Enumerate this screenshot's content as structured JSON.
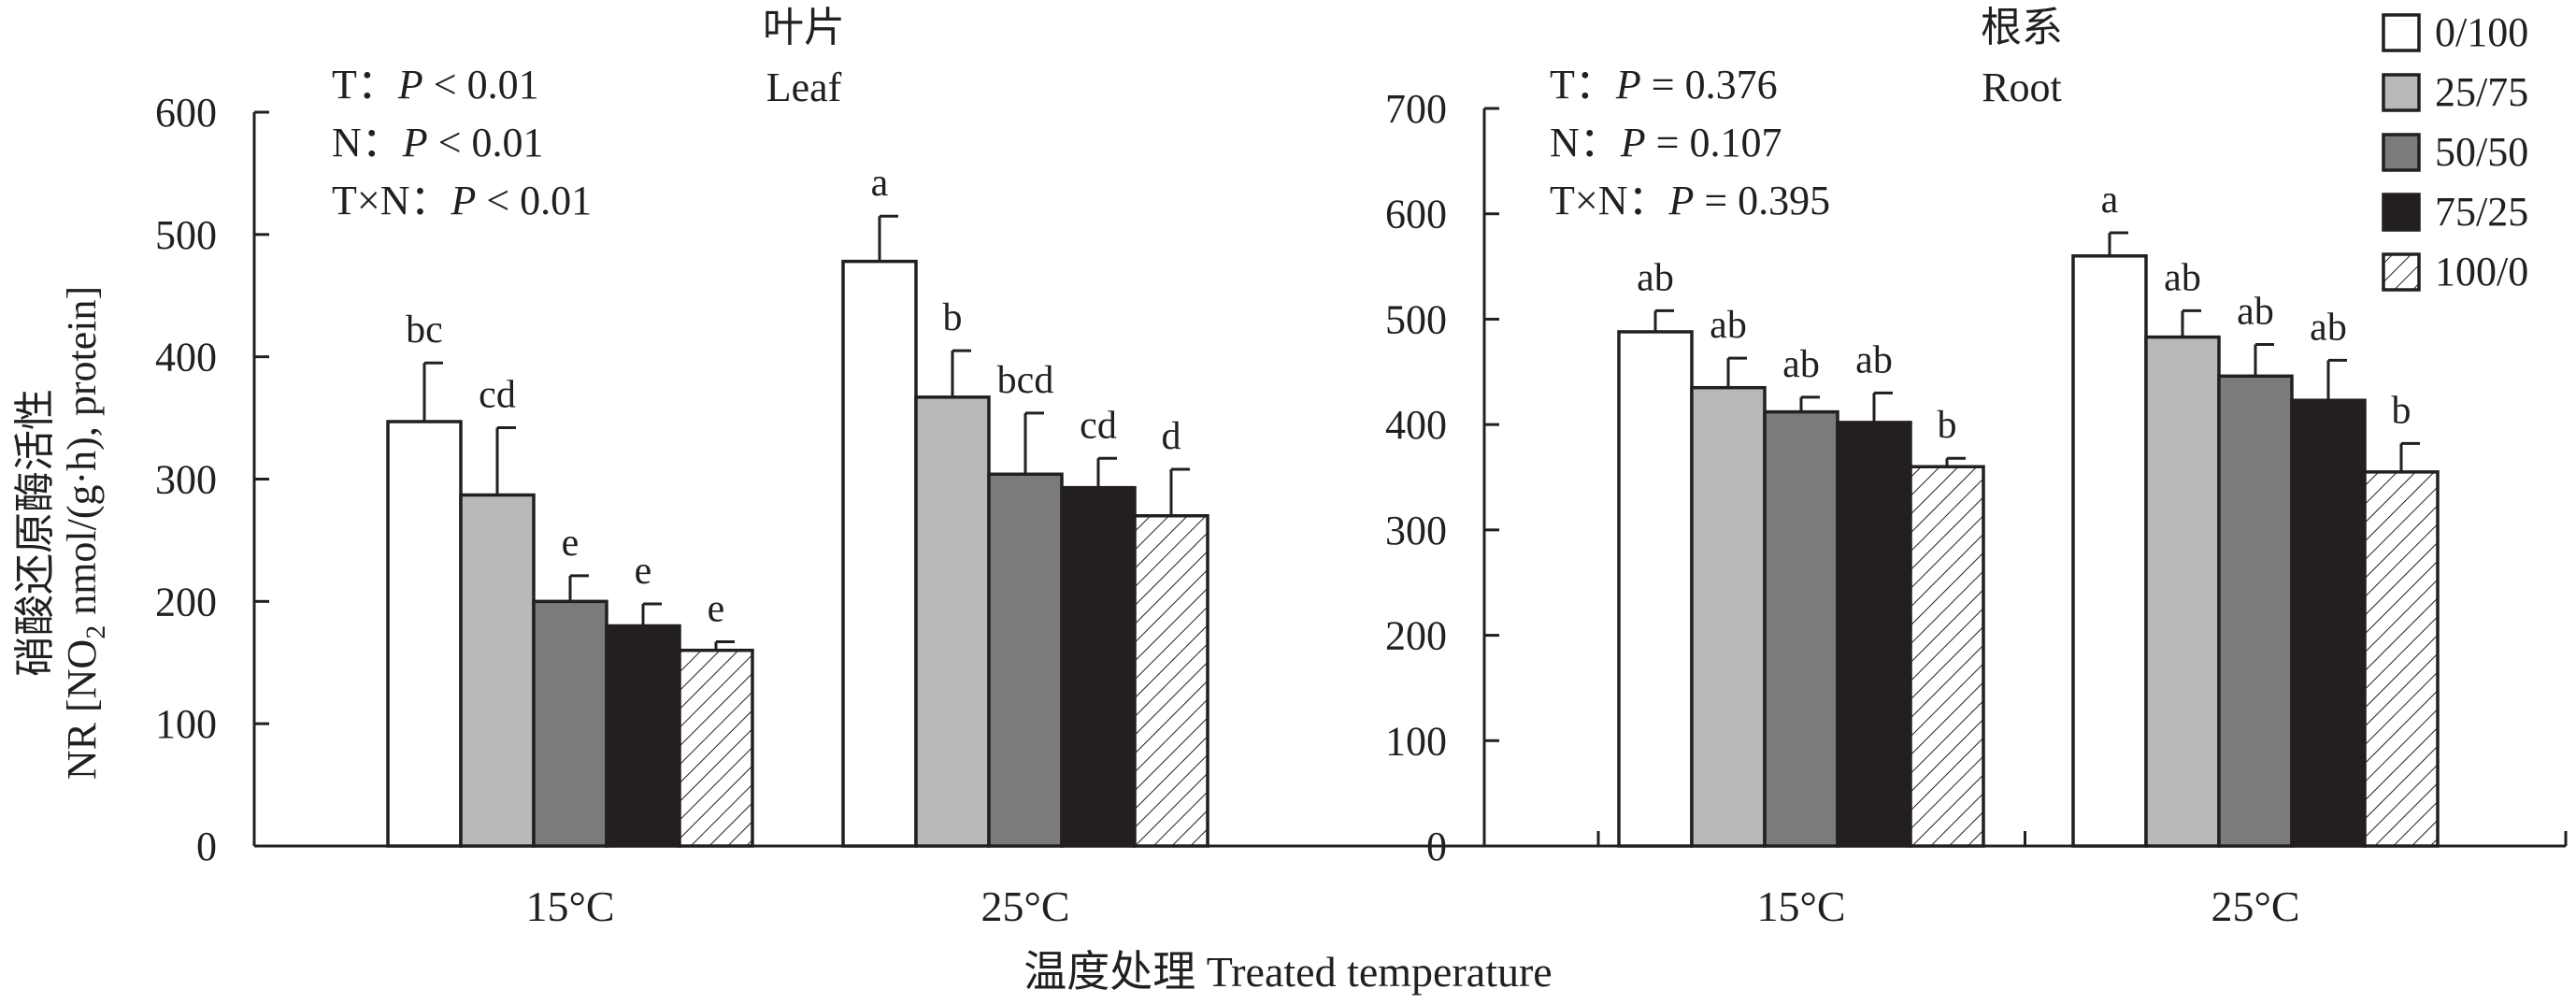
{
  "figure": {
    "x_axis_label": "温度处理 Treated temperature",
    "y_axis_label_cn": "硝酸还原酶活性",
    "y_axis_label_en_pre": "NR [NO",
    "y_axis_label_en_sub": "2",
    "y_axis_label_en_post": " nmol/(g·h), protein]"
  },
  "legend": [
    {
      "label": "0/100",
      "fill": "white"
    },
    {
      "label": "25/75",
      "fill": "light"
    },
    {
      "label": "50/50",
      "fill": "mid"
    },
    {
      "label": "75/25",
      "fill": "dark"
    },
    {
      "label": "100/0",
      "fill": "hatch"
    }
  ],
  "colors": {
    "white": "#ffffff",
    "light": "#b9b9b9",
    "mid": "#7b7b7b",
    "dark": "#231f20",
    "line": "#231f20"
  },
  "chart_data": [
    {
      "type": "bar",
      "title_cn": "叶片",
      "title_en": "Leaf",
      "stats": [
        {
          "factor": "T：",
          "p": "P",
          "rest": " < 0.01"
        },
        {
          "factor": "N：",
          "p": "P",
          "rest": " < 0.01"
        },
        {
          "factor": "T×N：",
          "p": "P",
          "rest": " < 0.01"
        }
      ],
      "categories": [
        "15°C",
        "25°C"
      ],
      "ylim": [
        0,
        600
      ],
      "yticks": [
        0,
        100,
        200,
        300,
        400,
        500,
        600
      ],
      "series": [
        {
          "name": "0/100",
          "values": [
            347,
            478
          ],
          "errors": [
            48,
            37
          ],
          "letters": [
            "bc",
            "a"
          ]
        },
        {
          "name": "25/75",
          "values": [
            287,
            367
          ],
          "errors": [
            55,
            38
          ],
          "letters": [
            "cd",
            "b"
          ]
        },
        {
          "name": "50/50",
          "values": [
            200,
            304
          ],
          "errors": [
            21,
            50
          ],
          "letters": [
            "e",
            "bcd"
          ]
        },
        {
          "name": "75/25",
          "values": [
            180,
            293
          ],
          "errors": [
            18,
            24
          ],
          "letters": [
            "e",
            "cd"
          ]
        },
        {
          "name": "100/0",
          "values": [
            160,
            270
          ],
          "errors": [
            7,
            38
          ],
          "letters": [
            "e",
            "d"
          ]
        }
      ]
    },
    {
      "type": "bar",
      "title_cn": "根系",
      "title_en": "Root",
      "stats": [
        {
          "factor": "T：",
          "p": "P",
          "rest": " = 0.376"
        },
        {
          "factor": "N：",
          "p": "P",
          "rest": " = 0.107"
        },
        {
          "factor": "T×N：",
          "p": "P",
          "rest": " = 0.395"
        }
      ],
      "categories": [
        "15°C",
        "25°C"
      ],
      "ylim": [
        0,
        700
      ],
      "yticks": [
        0,
        100,
        200,
        300,
        400,
        500,
        600,
        700
      ],
      "series": [
        {
          "name": "0/100",
          "values": [
            488,
            560
          ],
          "errors": [
            20,
            22
          ],
          "letters": [
            "ab",
            "a"
          ]
        },
        {
          "name": "25/75",
          "values": [
            435,
            483
          ],
          "errors": [
            28,
            25
          ],
          "letters": [
            "ab",
            "ab"
          ]
        },
        {
          "name": "50/50",
          "values": [
            412,
            446
          ],
          "errors": [
            14,
            30
          ],
          "letters": [
            "ab",
            "ab"
          ]
        },
        {
          "name": "75/25",
          "values": [
            402,
            423
          ],
          "errors": [
            28,
            38
          ],
          "letters": [
            "ab",
            "ab"
          ]
        },
        {
          "name": "100/0",
          "values": [
            360,
            355
          ],
          "errors": [
            8,
            27
          ],
          "letters": [
            "b",
            "b"
          ]
        }
      ]
    }
  ]
}
